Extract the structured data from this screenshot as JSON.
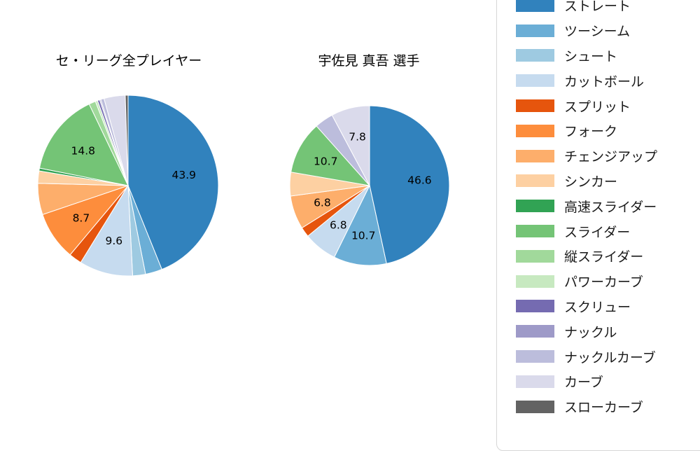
{
  "figure": {
    "background": "#ffffff"
  },
  "chart_data": [
    {
      "type": "pie",
      "title": "セ・リーグ全プレイヤー",
      "value_unit": "percent",
      "start_angle": "top",
      "direction": "clockwise",
      "slices": [
        {
          "label": "ストレート",
          "value": 43.9,
          "color": "#3182bd",
          "value_shown": true
        },
        {
          "label": "ツーシーム",
          "value": 3.0,
          "color": "#6baed6",
          "value_shown": false
        },
        {
          "label": "シュート",
          "value": 2.3,
          "color": "#9ecae1",
          "value_shown": false
        },
        {
          "label": "カットボール",
          "value": 9.6,
          "color": "#c6dbef",
          "value_shown": true
        },
        {
          "label": "スプリット",
          "value": 2.3,
          "color": "#e6550d",
          "value_shown": false
        },
        {
          "label": "フォーク",
          "value": 8.7,
          "color": "#fd8d3c",
          "value_shown": true
        },
        {
          "label": "チェンジアップ",
          "value": 5.6,
          "color": "#fdae6b",
          "value_shown": false
        },
        {
          "label": "シンカー",
          "value": 2.2,
          "color": "#fdd0a2",
          "value_shown": false
        },
        {
          "label": "高速スライダー",
          "value": 0.5,
          "color": "#31a354",
          "value_shown": false
        },
        {
          "label": "スライダー",
          "value": 14.8,
          "color": "#74c476",
          "value_shown": true
        },
        {
          "label": "縦スライダー",
          "value": 1.2,
          "color": "#a1d99b",
          "value_shown": false
        },
        {
          "label": "パワーカーブ",
          "value": 0.4,
          "color": "#c7e9c0",
          "value_shown": false
        },
        {
          "label": "スクリュー",
          "value": 0.4,
          "color": "#756bb1",
          "value_shown": false
        },
        {
          "label": "ナックル",
          "value": 0.2,
          "color": "#9e9ac8",
          "value_shown": false
        },
        {
          "label": "ナックルカーブ",
          "value": 0.6,
          "color": "#bcbddc",
          "value_shown": false
        },
        {
          "label": "カーブ",
          "value": 3.8,
          "color": "#dadaeb",
          "value_shown": false
        },
        {
          "label": "スローカーブ",
          "value": 0.5,
          "color": "#636363",
          "value_shown": false
        }
      ]
    },
    {
      "type": "pie",
      "title": "宇佐見 真吾 選手",
      "value_unit": "percent",
      "start_angle": "top",
      "direction": "clockwise",
      "slices": [
        {
          "label": "ストレート",
          "value": 46.6,
          "color": "#3182bd",
          "value_shown": true
        },
        {
          "label": "ツーシーム",
          "value": 10.7,
          "color": "#6baed6",
          "value_shown": true
        },
        {
          "label": "カットボール",
          "value": 6.8,
          "color": "#c6dbef",
          "value_shown": true
        },
        {
          "label": "スプリット",
          "value": 2.0,
          "color": "#e6550d",
          "value_shown": false
        },
        {
          "label": "チェンジアップ",
          "value": 6.8,
          "color": "#fdae6b",
          "value_shown": true
        },
        {
          "label": "シンカー",
          "value": 4.8,
          "color": "#fdd0a2",
          "value_shown": false
        },
        {
          "label": "スライダー",
          "value": 10.7,
          "color": "#74c476",
          "value_shown": true
        },
        {
          "label": "ナックルカーブ",
          "value": 3.8,
          "color": "#bcbddc",
          "value_shown": false
        },
        {
          "label": "カーブ",
          "value": 7.8,
          "color": "#dadaeb",
          "value_shown": true
        }
      ]
    }
  ],
  "legend": {
    "position": "right",
    "items": [
      {
        "label": "ストレート",
        "color": "#3182bd"
      },
      {
        "label": "ツーシーム",
        "color": "#6baed6"
      },
      {
        "label": "シュート",
        "color": "#9ecae1"
      },
      {
        "label": "カットボール",
        "color": "#c6dbef"
      },
      {
        "label": "スプリット",
        "color": "#e6550d"
      },
      {
        "label": "フォーク",
        "color": "#fd8d3c"
      },
      {
        "label": "チェンジアップ",
        "color": "#fdae6b"
      },
      {
        "label": "シンカー",
        "color": "#fdd0a2"
      },
      {
        "label": "高速スライダー",
        "color": "#31a354"
      },
      {
        "label": "スライダー",
        "color": "#74c476"
      },
      {
        "label": "縦スライダー",
        "color": "#a1d99b"
      },
      {
        "label": "パワーカーブ",
        "color": "#c7e9c0"
      },
      {
        "label": "スクリュー",
        "color": "#756bb1"
      },
      {
        "label": "ナックル",
        "color": "#9e9ac8"
      },
      {
        "label": "ナックルカーブ",
        "color": "#bcbddc"
      },
      {
        "label": "カーブ",
        "color": "#dadaeb"
      },
      {
        "label": "スローカーブ",
        "color": "#636363"
      }
    ]
  }
}
